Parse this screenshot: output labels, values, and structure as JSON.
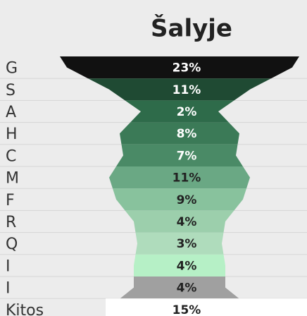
{
  "chart_data": {
    "type": "funnel",
    "title": "Šalyje",
    "categories": [
      "G",
      "S",
      "A",
      "H",
      "C",
      "M",
      "F",
      "R",
      "Q",
      "I",
      "I",
      "Kitos"
    ],
    "values": [
      23,
      11,
      2,
      8,
      7,
      11,
      9,
      4,
      3,
      4,
      4,
      15
    ],
    "value_labels": [
      "23%",
      "11%",
      "2%",
      "8%",
      "7%",
      "11%",
      "9%",
      "4%",
      "3%",
      "4%",
      "4%",
      "15%"
    ],
    "colors": [
      "#111111",
      "#1f4a33",
      "#2e6b4a",
      "#3b7a57",
      "#4a8a66",
      "#6aa884",
      "#88c29d",
      "#9ccfac",
      "#afdcbc",
      "#b6f0c6",
      "#a0a0a0",
      "#ffffff"
    ]
  }
}
